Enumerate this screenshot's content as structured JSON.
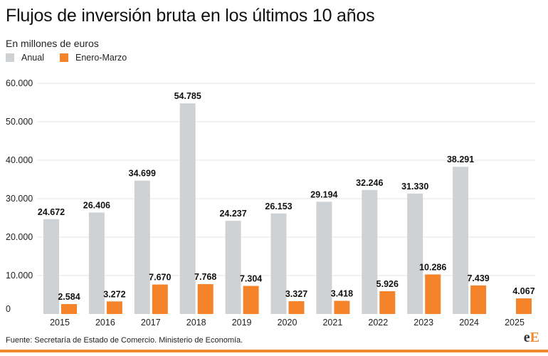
{
  "header": {
    "title": "Flujos de inversión bruta en los últimos 10 años",
    "subtitle": "En millones de euros"
  },
  "legend": {
    "annual_label": "Anual",
    "quarter_label": "Enero-Marzo"
  },
  "colors": {
    "annual": "#cfd2d4",
    "quarter": "#f5832a",
    "grid": "#e4e4e4",
    "accent": "#f08a30"
  },
  "footer": {
    "source": "Fuente: Secretaría de Estado de Comercio. Ministerio de Economía.",
    "logo": {
      "first": "e",
      "second": "E"
    }
  },
  "chart_data": {
    "type": "bar",
    "title": "Flujos de inversión bruta en los últimos 10 años",
    "subtitle": "En millones de euros",
    "categories": [
      "2015",
      "2016",
      "2017",
      "2018",
      "2019",
      "2020",
      "2021",
      "2022",
      "2023",
      "2024",
      "2025"
    ],
    "series": [
      {
        "name": "Anual",
        "values": [
          24672,
          26406,
          34699,
          54785,
          24237,
          26153,
          29194,
          32246,
          31330,
          38291,
          null
        ],
        "labels": [
          "24.672",
          "26.406",
          "34.699",
          "54.785",
          "24.237",
          "26.153",
          "29.194",
          "32.246",
          "31.330",
          "38.291",
          ""
        ]
      },
      {
        "name": "Enero-Marzo",
        "values": [
          2584,
          3272,
          7670,
          7768,
          7304,
          3327,
          3418,
          5926,
          10286,
          7439,
          4067
        ],
        "labels": [
          "2.584",
          "3.272",
          "7.670",
          "7.768",
          "7.304",
          "3.327",
          "3.418",
          "5.926",
          "10.286",
          "7.439",
          "4.067"
        ]
      }
    ],
    "ylim": [
      0,
      60000
    ],
    "yticks": [
      0,
      10000,
      20000,
      30000,
      40000,
      50000,
      60000
    ],
    "ytick_labels": [
      "0",
      "10.000",
      "20.000",
      "30.000",
      "40.000",
      "50.000",
      "60.000"
    ],
    "grid": true,
    "legend_position": "top-left"
  }
}
